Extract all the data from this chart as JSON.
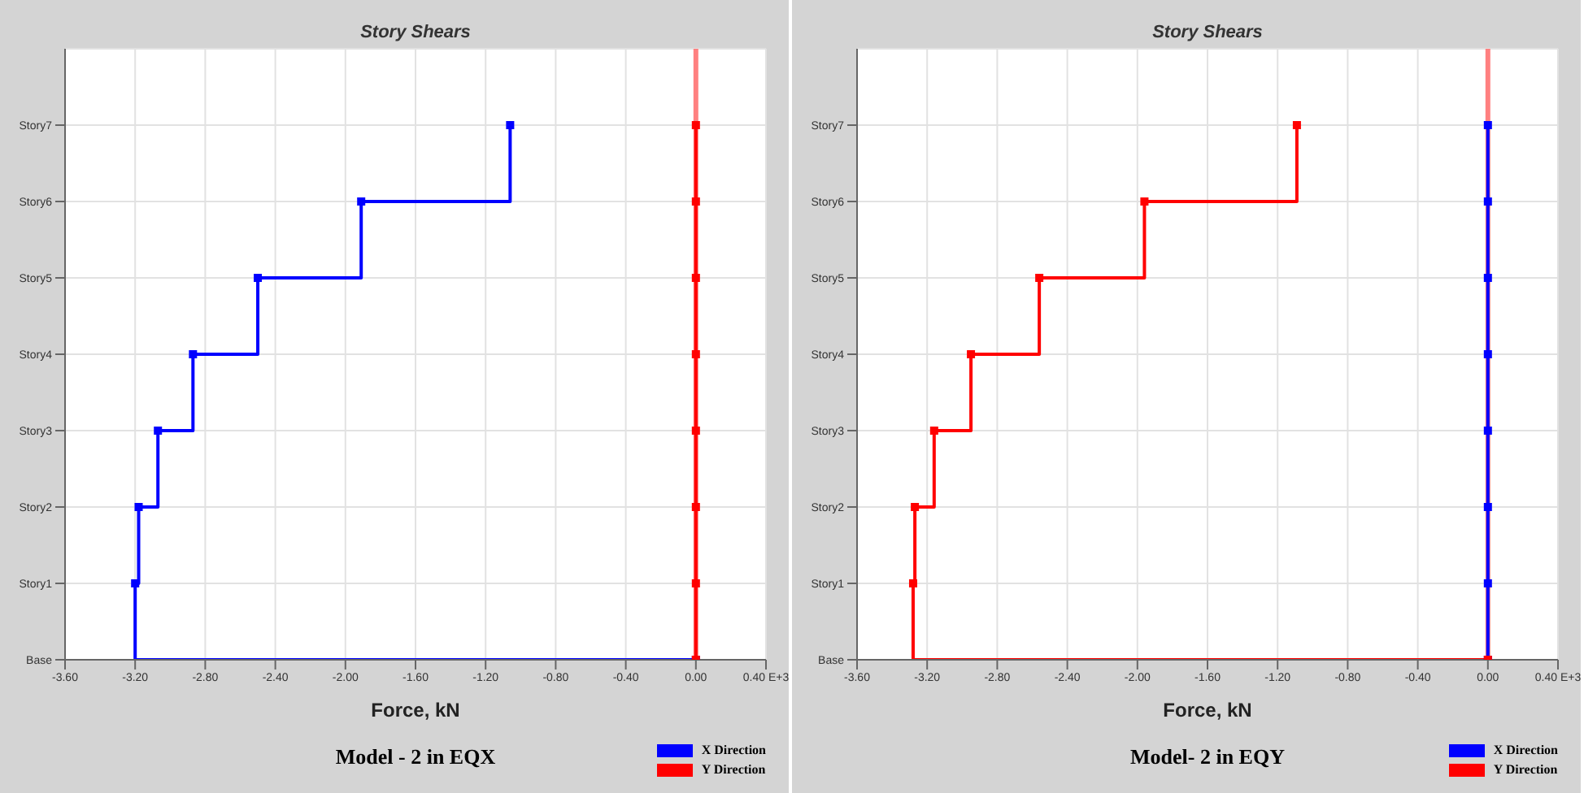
{
  "chart_data": [
    {
      "type": "step",
      "orientation": "horizontal",
      "title": "Story Shears",
      "xlabel": "Force, kN",
      "annotations": [
        "Model - 2 in EQX"
      ],
      "categories": [
        "Story7",
        "Story6",
        "Story5",
        "Story4",
        "Story3",
        "Story2",
        "Story1",
        "Base"
      ],
      "xlim": [
        -3.6,
        0.4
      ],
      "xticks": [
        {
          "value": -3.6,
          "label": "-3.60"
        },
        {
          "value": -3.2,
          "label": "-3.20"
        },
        {
          "value": -2.8,
          "label": "-2.80"
        },
        {
          "value": -2.4,
          "label": "-2.40"
        },
        {
          "value": -2.0,
          "label": "-2.00"
        },
        {
          "value": -1.6,
          "label": "-1.60"
        },
        {
          "value": -1.2,
          "label": "-1.20"
        },
        {
          "value": -0.8,
          "label": "-0.80"
        },
        {
          "value": -0.4,
          "label": "-0.40"
        },
        {
          "value": 0,
          "label": "0.00"
        },
        {
          "value": 0.4,
          "label": "0.40 E+3"
        }
      ],
      "grid": true,
      "legend": "bottom right",
      "marker": "square",
      "line_style": "solid",
      "ref_lines": [
        {
          "axis": "x",
          "value": 0,
          "color": "#ff8080"
        }
      ],
      "series": [
        {
          "name": "X Direction",
          "color": "#0000ff",
          "values": [
            -1.06,
            -1.91,
            -2.5,
            -2.87,
            -3.07,
            -3.18,
            -3.2,
            0
          ]
        },
        {
          "name": "Y Direction",
          "color": "#ff0000",
          "values": [
            0,
            0,
            0,
            0,
            0,
            0,
            0,
            0
          ]
        }
      ]
    },
    {
      "type": "step",
      "orientation": "horizontal",
      "title": "Story Shears",
      "xlabel": "Force, kN",
      "annotations": [
        "Model- 2 in EQY"
      ],
      "categories": [
        "Story7",
        "Story6",
        "Story5",
        "Story4",
        "Story3",
        "Story2",
        "Story1",
        "Base"
      ],
      "xlim": [
        -3.6,
        0.4
      ],
      "xticks": [
        {
          "value": -3.6,
          "label": "-3.60"
        },
        {
          "value": -3.2,
          "label": "-3.20"
        },
        {
          "value": -2.8,
          "label": "-2.80"
        },
        {
          "value": -2.4,
          "label": "-2.40"
        },
        {
          "value": -2.0,
          "label": "-2.00"
        },
        {
          "value": -1.6,
          "label": "-1.60"
        },
        {
          "value": -1.2,
          "label": "-1.20"
        },
        {
          "value": -0.8,
          "label": "-0.80"
        },
        {
          "value": -0.4,
          "label": "-0.40"
        },
        {
          "value": 0,
          "label": "0.00"
        },
        {
          "value": 0.4,
          "label": "0.40 E+3"
        }
      ],
      "grid": true,
      "legend": "bottom right",
      "marker": "square",
      "line_style": "solid",
      "ref_lines": [
        {
          "axis": "x",
          "value": 0,
          "color": "#ff8080"
        }
      ],
      "series": [
        {
          "name": "X Direction",
          "color": "#0000ff",
          "values": [
            0,
            0,
            0,
            0,
            0,
            0,
            0,
            0
          ]
        },
        {
          "name": "Y Direction",
          "color": "#ff0000",
          "values": [
            -1.09,
            -1.96,
            -2.56,
            -2.95,
            -3.16,
            -3.27,
            -3.28,
            0
          ]
        }
      ]
    }
  ]
}
